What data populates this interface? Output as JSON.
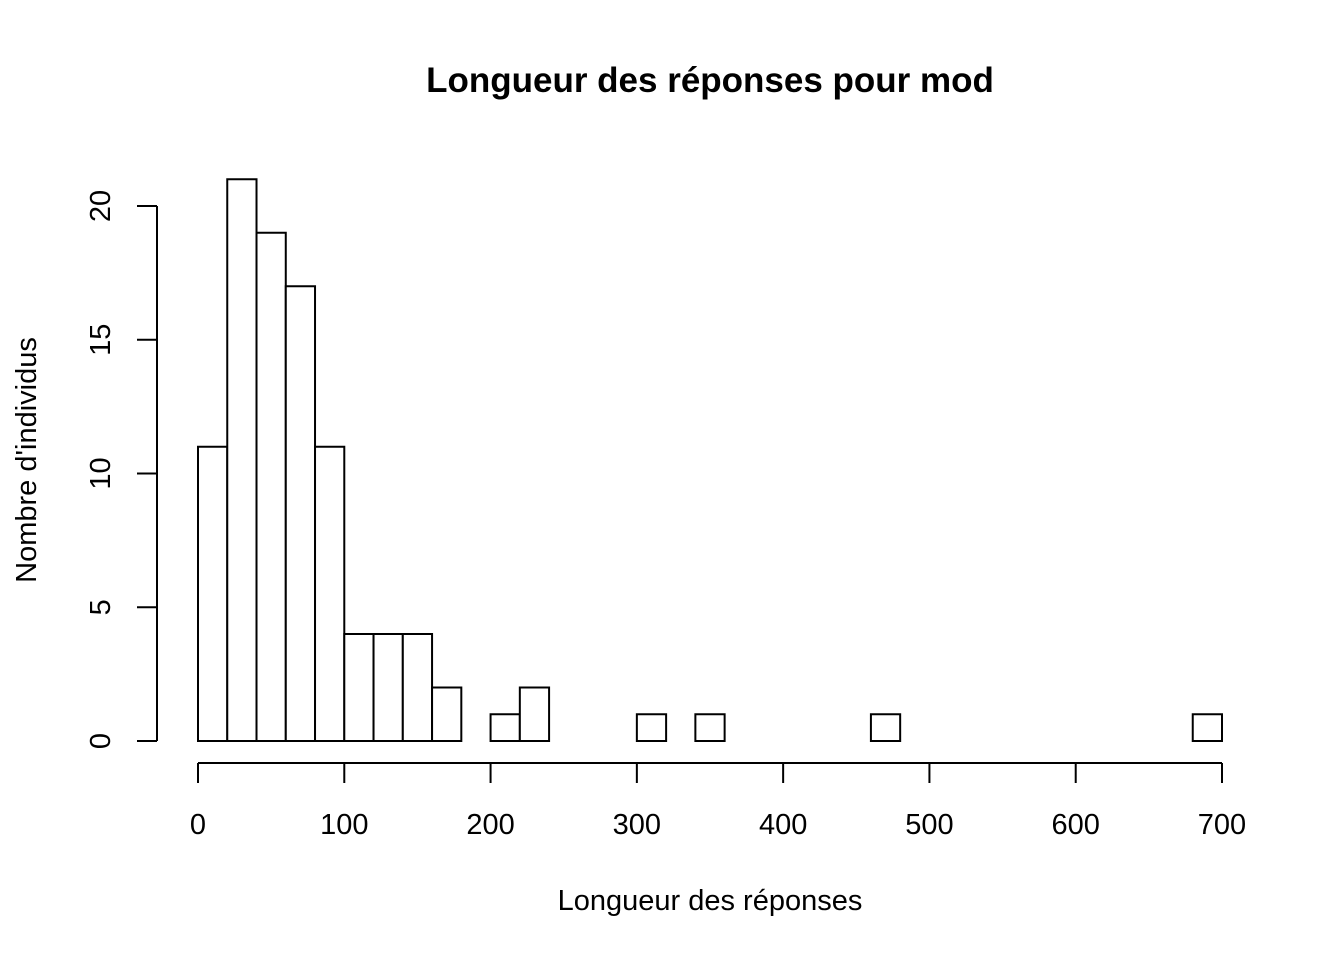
{
  "chart_data": {
    "type": "bar",
    "title": "Longueur des réponses pour mod",
    "xlabel": "Longueur des réponses",
    "ylabel": "Nombre d'individus",
    "bin_width": 20,
    "bins": [
      {
        "start": 0,
        "end": 20,
        "count": 11
      },
      {
        "start": 20,
        "end": 40,
        "count": 21
      },
      {
        "start": 40,
        "end": 60,
        "count": 19
      },
      {
        "start": 60,
        "end": 80,
        "count": 17
      },
      {
        "start": 80,
        "end": 100,
        "count": 11
      },
      {
        "start": 100,
        "end": 120,
        "count": 4
      },
      {
        "start": 120,
        "end": 140,
        "count": 4
      },
      {
        "start": 140,
        "end": 160,
        "count": 4
      },
      {
        "start": 160,
        "end": 180,
        "count": 2
      },
      {
        "start": 180,
        "end": 200,
        "count": 0
      },
      {
        "start": 200,
        "end": 220,
        "count": 1
      },
      {
        "start": 220,
        "end": 240,
        "count": 2
      },
      {
        "start": 240,
        "end": 260,
        "count": 0
      },
      {
        "start": 260,
        "end": 280,
        "count": 0
      },
      {
        "start": 280,
        "end": 300,
        "count": 0
      },
      {
        "start": 300,
        "end": 320,
        "count": 1
      },
      {
        "start": 320,
        "end": 340,
        "count": 0
      },
      {
        "start": 340,
        "end": 360,
        "count": 1
      },
      {
        "start": 360,
        "end": 380,
        "count": 0
      },
      {
        "start": 380,
        "end": 400,
        "count": 0
      },
      {
        "start": 400,
        "end": 420,
        "count": 0
      },
      {
        "start": 420,
        "end": 440,
        "count": 0
      },
      {
        "start": 440,
        "end": 460,
        "count": 0
      },
      {
        "start": 460,
        "end": 480,
        "count": 1
      },
      {
        "start": 480,
        "end": 500,
        "count": 0
      },
      {
        "start": 500,
        "end": 520,
        "count": 0
      },
      {
        "start": 520,
        "end": 540,
        "count": 0
      },
      {
        "start": 540,
        "end": 560,
        "count": 0
      },
      {
        "start": 560,
        "end": 580,
        "count": 0
      },
      {
        "start": 580,
        "end": 600,
        "count": 0
      },
      {
        "start": 600,
        "end": 620,
        "count": 0
      },
      {
        "start": 620,
        "end": 640,
        "count": 0
      },
      {
        "start": 640,
        "end": 660,
        "count": 0
      },
      {
        "start": 660,
        "end": 680,
        "count": 0
      },
      {
        "start": 680,
        "end": 700,
        "count": 1
      }
    ],
    "xlim": [
      0,
      700
    ],
    "ylim": [
      0,
      21
    ],
    "x_ticks": [
      "0",
      "100",
      "200",
      "300",
      "400",
      "500",
      "600",
      "700"
    ],
    "y_ticks": [
      "0",
      "5",
      "10",
      "15",
      "20"
    ],
    "grid": false,
    "legend": "none"
  }
}
